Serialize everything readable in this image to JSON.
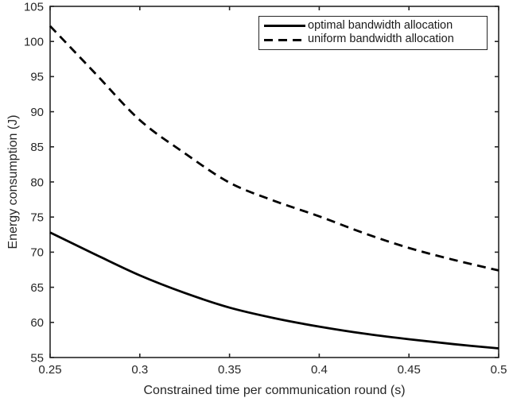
{
  "figure": {
    "background": "#ffffff",
    "curve_color": "#000000",
    "axis_color": "#262626",
    "text_color": "#262626"
  },
  "chart_data": {
    "type": "line",
    "title": "",
    "xlabel": "Constrained time per communication round (s)",
    "ylabel": "Energy consumption (J)",
    "xlim": [
      0.25,
      0.5
    ],
    "ylim": [
      55,
      105
    ],
    "xticks": [
      0.25,
      0.3,
      0.35,
      0.4,
      0.45,
      0.5
    ],
    "xtick_labels": [
      "0.25",
      "0.3",
      "0.35",
      "0.4",
      "0.45",
      "0.5"
    ],
    "yticks": [
      55,
      60,
      65,
      70,
      75,
      80,
      85,
      90,
      95,
      100,
      105
    ],
    "ytick_labels": [
      "55",
      "60",
      "65",
      "70",
      "75",
      "80",
      "85",
      "90",
      "95",
      "100",
      "105"
    ],
    "grid": false,
    "legend_position": "top-right",
    "x": [
      0.25,
      0.275,
      0.3,
      0.325,
      0.35,
      0.375,
      0.4,
      0.425,
      0.45,
      0.475,
      0.5
    ],
    "series": [
      {
        "name": "optimal bandwidth allocation",
        "style": "solid",
        "color": "#000000",
        "values": [
          72.8,
          69.7,
          66.7,
          64.2,
          62.1,
          60.6,
          59.4,
          58.4,
          57.6,
          56.9,
          56.3
        ]
      },
      {
        "name": "uniform bandwidth allocation",
        "style": "dashed",
        "color": "#000000",
        "values": [
          102.2,
          95.5,
          88.8,
          84.1,
          79.9,
          77.3,
          75.1,
          72.7,
          70.6,
          68.9,
          67.4
        ]
      }
    ]
  }
}
